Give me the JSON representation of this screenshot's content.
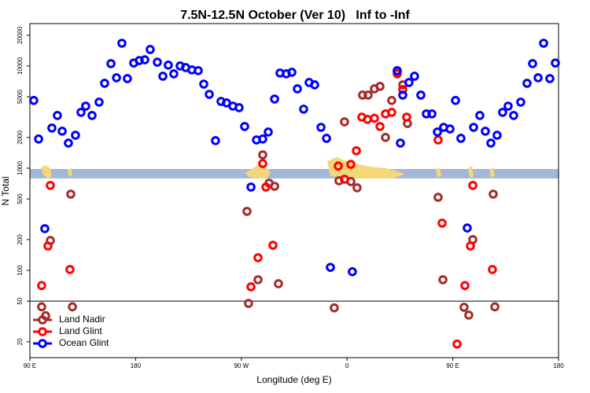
{
  "chart_data": {
    "type": "scatter",
    "title": "7.5N-12.5N October (Ver 10)   Inf to -Inf",
    "x_label": "Longitude (deg E)",
    "y_label": "N Total",
    "xlim": [
      90,
      540
    ],
    "xticks": [
      {
        "value": 90,
        "label": "90 E"
      },
      {
        "value": 180,
        "label": "180"
      },
      {
        "value": 270,
        "label": "90 W"
      },
      {
        "value": 360,
        "label": "0"
      },
      {
        "value": 450,
        "label": "90 E"
      },
      {
        "value": 540,
        "label": "180"
      }
    ],
    "ylim": [
      14,
      26000
    ],
    "yticks": [
      20,
      50,
      100,
      200,
      500,
      1000,
      2000,
      5000,
      10000,
      20000
    ],
    "log_scale": "y",
    "reference_line": 50,
    "legend": "bottom left",
    "series": [
      {
        "name": "Land Nadir",
        "color": "#a52a2a",
        "x": [
          100.0,
          103.4,
          107.4,
          124.8,
          126.2,
          274.8,
          276.1,
          284.2,
          288.2,
          293.6,
          298.3,
          301.6,
          349.1,
          353.1,
          357.8,
          363.2,
          368.5,
          373.2,
          377.9,
          383.3,
          388.0,
          392.7,
          398.0,
          402.7,
          407.4,
          411.4,
          437.5,
          441.6,
          459.6,
          463.6,
          467.0,
          484.4,
          485.8
        ],
        "values": [
          44,
          36,
          196,
          557,
          44,
          378,
          47.5,
          81,
          1350,
          714,
          665,
          74,
          43,
          753,
          2840,
          740,
          643,
          5190,
          5190,
          5980,
          6310,
          2000,
          4600,
          8830,
          6540,
          2740,
          519,
          81,
          43.5,
          36.5,
          200,
          557,
          44
        ]
      },
      {
        "name": "Land Glint",
        "color": "#ff0000",
        "x": [
          100.0,
          105.4,
          107.4,
          124.1,
          278.2,
          284.2,
          288.2,
          290.9,
          296.9,
          352.5,
          357.8,
          363.2,
          367.9,
          372.6,
          377.3,
          383.3,
          388.0,
          392.7,
          398.0,
          402.7,
          407.4,
          410.7,
          437.5,
          440.9,
          453.6,
          460.3,
          465.0,
          467.0,
          483.7
        ],
        "values": [
          71,
          173,
          678,
          102,
          69,
          133,
          1110,
          653,
          176,
          1050,
          780,
          1090,
          1480,
          3160,
          3000,
          3080,
          2560,
          3400,
          3520,
          8380,
          5880,
          3160,
          1890,
          290,
          19,
          71,
          173,
          678,
          102
        ]
      },
      {
        "name": "Ocean Glint",
        "color": "#0000ff",
        "x": [
          93.3,
          97.4,
          102.7,
          108.7,
          113.4,
          117.5,
          122.8,
          128.8,
          133.5,
          137.5,
          142.9,
          148.9,
          153.6,
          159.0,
          163.7,
          168.3,
          173.0,
          178.4,
          183.1,
          187.8,
          192.4,
          198.5,
          203.2,
          207.8,
          212.5,
          217.9,
          222.6,
          227.9,
          233.3,
          238.0,
          242.7,
          248.0,
          252.7,
          257.4,
          262.8,
          268.1,
          272.8,
          278.2,
          282.9,
          288.2,
          292.9,
          298.3,
          302.9,
          308.3,
          313.0,
          317.7,
          323.0,
          327.7,
          332.4,
          337.8,
          342.5,
          345.8,
          364.5,
          402.7,
          405.4,
          407.4,
          412.7,
          417.4,
          422.8,
          427.5,
          432.2,
          436.9,
          442.2,
          447.6,
          452.3,
          456.9,
          462.3,
          467.7,
          473.0,
          477.7,
          482.4,
          487.7,
          492.4,
          497.1,
          501.8,
          507.8,
          513.2,
          517.9,
          522.6,
          527.3,
          532.6,
          537.3
        ],
        "values": [
          4600,
          1930,
          256,
          2470,
          3280,
          2300,
          1760,
          2100,
          3520,
          4050,
          3280,
          4430,
          6770,
          10540,
          7670,
          16700,
          7530,
          10700,
          11300,
          11500,
          14500,
          10900,
          7940,
          10200,
          8380,
          10000,
          9660,
          9160,
          9000,
          6650,
          5280,
          1860,
          4500,
          4350,
          4050,
          3910,
          2560,
          653,
          1890,
          1930,
          2260,
          4750,
          8530,
          8380,
          8680,
          5980,
          3780,
          6890,
          6540,
          2510,
          1960,
          107,
          97,
          9000,
          1760,
          5190,
          6890,
          7940,
          5190,
          3400,
          3400,
          2260,
          2510,
          2420,
          4600,
          1960,
          260,
          2510,
          3280,
          2300,
          1760,
          2100,
          3520,
          4050,
          3280,
          4430,
          6770,
          10540,
          7670,
          16700,
          7530,
          10700
        ]
      }
    ]
  }
}
